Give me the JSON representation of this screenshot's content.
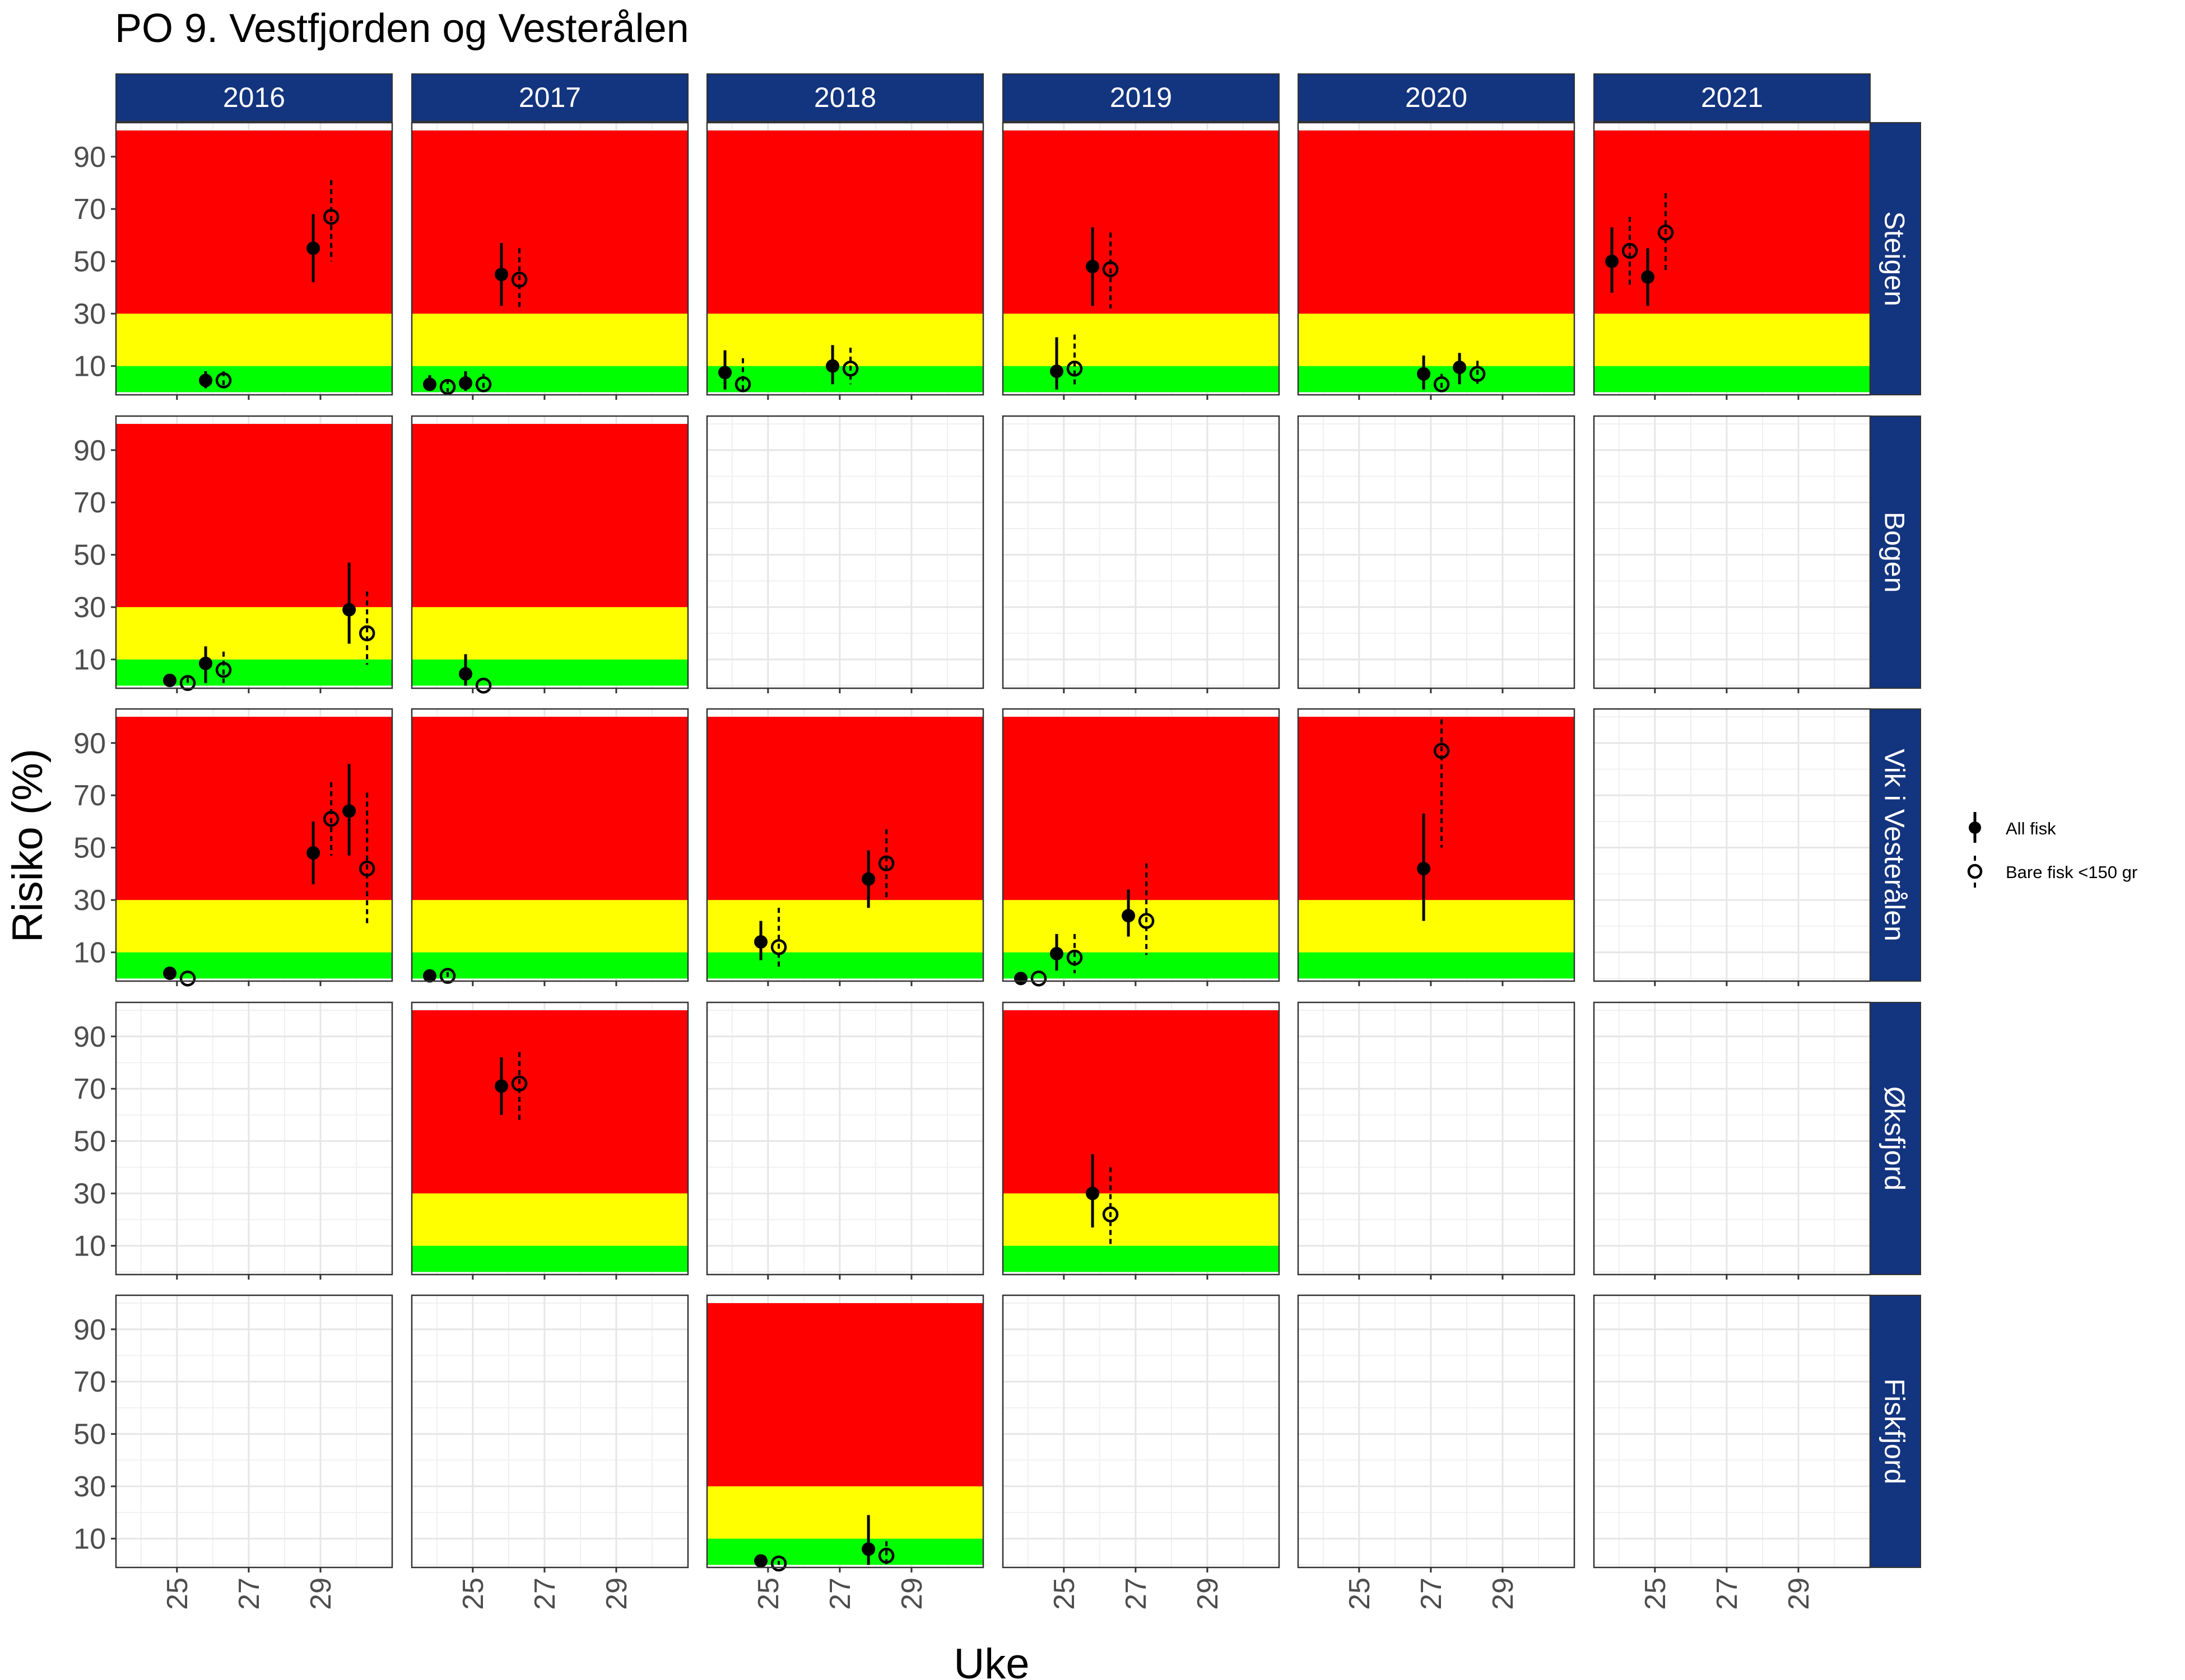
{
  "chart_data": {
    "type": "scatter",
    "title": "PO 9. Vestfjorden og Vesterålen",
    "xlabel": "Uke",
    "ylabel": "Risiko (%)",
    "x_ticks": [
      "25",
      "27",
      "29"
    ],
    "y_ticks": [
      "10",
      "30",
      "50",
      "70",
      "90"
    ],
    "xlim": [
      23.3,
      31.0
    ],
    "ylim": [
      -1,
      103
    ],
    "grid": true,
    "risk_bands": [
      {
        "from": 0,
        "to": 10,
        "color": "#00ff00"
      },
      {
        "from": 10,
        "to": 30,
        "color": "#ffff00"
      },
      {
        "from": 30,
        "to": 100,
        "color": "#ff0000"
      }
    ],
    "strip_color": "#13347e",
    "years": [
      "2016",
      "2017",
      "2018",
      "2019",
      "2020",
      "2021"
    ],
    "locations": [
      "Steigen",
      "Bogen",
      "Vik i Vesterålen",
      "Øksfjord",
      "Fiskfjord"
    ],
    "legend": {
      "position": "right",
      "entries": [
        {
          "label": "All fisk",
          "marker": "filled",
          "line": "solid"
        },
        {
          "label": "Bare fisk <150 gr",
          "marker": "open",
          "line": "dashed"
        }
      ]
    },
    "panels": [
      {
        "location": "Steigen",
        "year": "2016",
        "bands": true,
        "all": [
          [
            25.8,
            4.5,
            1.5,
            8
          ],
          [
            28.8,
            55,
            42,
            68
          ]
        ],
        "small": [
          [
            26.3,
            4.5,
            1.5,
            8
          ],
          [
            29.3,
            67,
            50,
            81
          ]
        ]
      },
      {
        "location": "Steigen",
        "year": "2017",
        "bands": true,
        "all": [
          [
            23.8,
            3,
            0.5,
            6.5
          ],
          [
            24.8,
            3.5,
            0.5,
            8
          ],
          [
            25.8,
            45,
            33,
            57
          ]
        ],
        "small": [
          [
            24.3,
            2,
            0,
            5
          ],
          [
            25.3,
            3,
            0.5,
            7
          ],
          [
            26.3,
            43,
            31,
            55
          ]
        ]
      },
      {
        "location": "Steigen",
        "year": "2018",
        "bands": true,
        "all": [
          [
            23.8,
            7.5,
            1,
            16
          ],
          [
            26.8,
            10,
            3,
            18
          ]
        ],
        "small": [
          [
            24.3,
            3,
            0,
            13
          ],
          [
            27.3,
            9,
            3,
            17
          ]
        ]
      },
      {
        "location": "Steigen",
        "year": "2019",
        "bands": true,
        "all": [
          [
            24.8,
            8,
            1,
            21
          ],
          [
            25.8,
            48,
            33,
            63
          ]
        ],
        "small": [
          [
            25.3,
            9,
            2,
            22
          ],
          [
            26.3,
            47,
            32,
            61
          ]
        ]
      },
      {
        "location": "Steigen",
        "year": "2020",
        "bands": true,
        "all": [
          [
            26.8,
            7,
            1,
            14
          ],
          [
            27.8,
            9.5,
            3,
            15
          ]
        ],
        "small": [
          [
            27.3,
            3,
            0,
            7
          ],
          [
            28.3,
            7,
            2,
            12
          ]
        ]
      },
      {
        "location": "Steigen",
        "year": "2021",
        "bands": true,
        "all": [
          [
            23.8,
            50,
            38,
            63
          ],
          [
            24.8,
            44,
            33,
            55
          ]
        ],
        "small": [
          [
            24.3,
            54,
            40,
            67
          ],
          [
            25.3,
            61,
            46,
            76
          ]
        ]
      },
      {
        "location": "Bogen",
        "year": "2016",
        "bands": true,
        "all": [
          [
            24.8,
            2,
            0,
            4
          ],
          [
            25.8,
            8.5,
            1,
            15
          ],
          [
            29.8,
            29,
            16,
            47
          ]
        ],
        "small": [
          [
            25.3,
            1,
            0,
            3
          ],
          [
            26.3,
            6,
            1,
            13
          ],
          [
            30.3,
            20,
            8,
            36
          ]
        ]
      },
      {
        "location": "Bogen",
        "year": "2017",
        "bands": true,
        "all": [
          [
            24.8,
            4.5,
            0,
            12
          ]
        ],
        "small": [
          [
            25.3,
            0,
            0,
            0
          ]
        ]
      },
      {
        "location": "Bogen",
        "year": "2018",
        "bands": false,
        "all": [],
        "small": []
      },
      {
        "location": "Bogen",
        "year": "2019",
        "bands": false,
        "all": [],
        "small": []
      },
      {
        "location": "Bogen",
        "year": "2020",
        "bands": false,
        "all": [],
        "small": []
      },
      {
        "location": "Bogen",
        "year": "2021",
        "bands": false,
        "all": [],
        "small": []
      },
      {
        "location": "Vik i Vesterålen",
        "year": "2016",
        "bands": true,
        "all": [
          [
            24.8,
            2,
            0,
            4
          ],
          [
            28.8,
            48,
            36,
            60
          ],
          [
            29.8,
            64,
            47,
            82
          ]
        ],
        "small": [
          [
            25.3,
            0,
            0,
            0
          ],
          [
            29.3,
            61,
            47,
            75
          ],
          [
            30.3,
            42,
            20,
            71
          ]
        ]
      },
      {
        "location": "Vik i Vesterålen",
        "year": "2017",
        "bands": true,
        "all": [
          [
            23.8,
            1,
            0,
            2.5
          ]
        ],
        "small": [
          [
            24.3,
            1,
            0,
            2.5
          ]
        ]
      },
      {
        "location": "Vik i Vesterålen",
        "year": "2018",
        "bands": true,
        "all": [
          [
            24.8,
            14,
            7,
            22
          ],
          [
            27.8,
            38,
            27,
            49
          ]
        ],
        "small": [
          [
            25.3,
            12,
            4,
            27
          ],
          [
            28.3,
            44,
            31,
            57
          ]
        ]
      },
      {
        "location": "Vik i Vesterålen",
        "year": "2019",
        "bands": true,
        "all": [
          [
            23.8,
            0,
            0,
            0
          ],
          [
            24.8,
            9.5,
            3,
            17
          ],
          [
            26.8,
            24,
            16,
            34
          ]
        ],
        "small": [
          [
            24.3,
            0,
            0,
            0
          ],
          [
            25.3,
            8,
            2,
            17
          ],
          [
            27.3,
            22,
            9,
            44
          ]
        ]
      },
      {
        "location": "Vik i Vesterålen",
        "year": "2020",
        "bands": true,
        "all": [
          [
            26.8,
            42,
            22,
            63
          ]
        ],
        "small": [
          [
            27.3,
            87,
            50,
            99
          ]
        ]
      },
      {
        "location": "Vik i Vesterålen",
        "year": "2021",
        "bands": false,
        "all": [],
        "small": []
      },
      {
        "location": "Øksfjord",
        "year": "2016",
        "bands": false,
        "all": [],
        "small": []
      },
      {
        "location": "Øksfjord",
        "year": "2017",
        "bands": true,
        "all": [
          [
            25.8,
            71,
            60,
            82
          ]
        ],
        "small": [
          [
            26.3,
            72,
            57,
            84
          ]
        ]
      },
      {
        "location": "Øksfjord",
        "year": "2018",
        "bands": false,
        "all": [],
        "small": []
      },
      {
        "location": "Øksfjord",
        "year": "2019",
        "bands": true,
        "all": [
          [
            25.8,
            30,
            17,
            45
          ]
        ],
        "small": [
          [
            26.3,
            22,
            10,
            40
          ]
        ]
      },
      {
        "location": "Øksfjord",
        "year": "2020",
        "bands": false,
        "all": [],
        "small": []
      },
      {
        "location": "Øksfjord",
        "year": "2021",
        "bands": false,
        "all": [],
        "small": []
      },
      {
        "location": "Fiskfjord",
        "year": "2016",
        "bands": false,
        "all": [],
        "small": []
      },
      {
        "location": "Fiskfjord",
        "year": "2017",
        "bands": false,
        "all": [],
        "small": []
      },
      {
        "location": "Fiskfjord",
        "year": "2018",
        "bands": true,
        "all": [
          [
            24.8,
            1.5,
            0,
            3.5
          ],
          [
            27.8,
            6,
            0,
            19
          ]
        ],
        "small": [
          [
            25.3,
            0.5,
            0,
            1.5
          ],
          [
            28.3,
            3.5,
            0,
            9
          ]
        ]
      },
      {
        "location": "Fiskfjord",
        "year": "2019",
        "bands": false,
        "all": [],
        "small": []
      },
      {
        "location": "Fiskfjord",
        "year": "2020",
        "bands": false,
        "all": [],
        "small": []
      },
      {
        "location": "Fiskfjord",
        "year": "2021",
        "bands": false,
        "all": [],
        "small": []
      }
    ]
  }
}
